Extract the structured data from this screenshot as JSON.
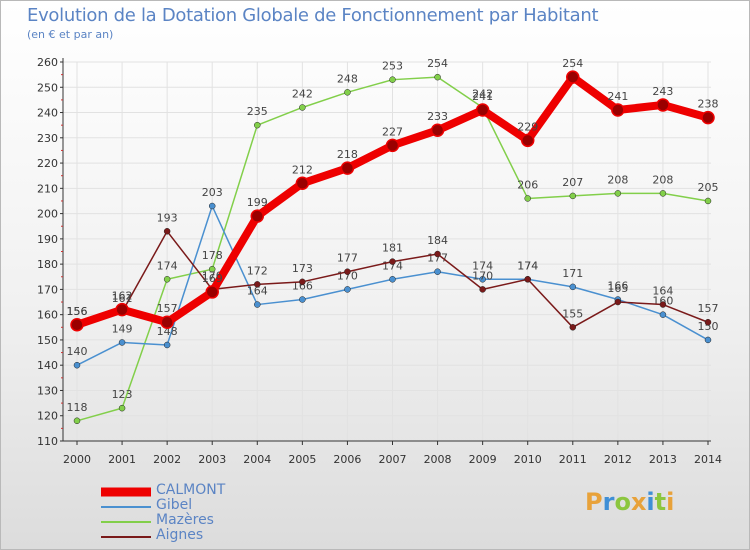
{
  "header": {
    "title": "Evolution de la Dotation Globale de Fonctionnement par Habitant",
    "subtitle": "(en € et par an)"
  },
  "logo": {
    "text": "Proxiti",
    "colors": [
      "#e8a23a",
      "#3f8fd6",
      "#8cc63f",
      "#e8a23a",
      "#3f8fd6",
      "#8cc63f",
      "#e8a23a"
    ]
  },
  "chart_data": {
    "type": "line",
    "title": "Evolution de la Dotation Globale de Fonctionnement par Habitant",
    "subtitle": "(en € et par an)",
    "xlabel": "",
    "ylabel": "",
    "x": [
      "2000",
      "2001",
      "2002",
      "2003",
      "2004",
      "2005",
      "2006",
      "2007",
      "2008",
      "2009",
      "2010",
      "2011",
      "2012",
      "2013",
      "2014"
    ],
    "ylim": [
      110,
      260
    ],
    "yticks": [
      110,
      120,
      130,
      140,
      150,
      160,
      170,
      180,
      190,
      200,
      210,
      220,
      230,
      240,
      250,
      260
    ],
    "grid": true,
    "legend_position": "bottom-left",
    "series": [
      {
        "name": "Mazères",
        "color": "#82cf4a",
        "values": [
          118,
          123,
          174,
          178,
          235,
          242,
          248,
          253,
          254,
          242,
          206,
          207,
          208,
          208,
          205
        ]
      },
      {
        "name": "Gibel",
        "color": "#4a90d0",
        "values": [
          140,
          149,
          148,
          203,
          164,
          166,
          170,
          174,
          177,
          174,
          174,
          171,
          166,
          160,
          150
        ]
      },
      {
        "name": "Aignes",
        "color": "#7a1a1a",
        "values": [
          156,
          161,
          193,
          170,
          172,
          173,
          177,
          181,
          184,
          170,
          174,
          155,
          165,
          164,
          157
        ]
      },
      {
        "name": "CALMONT",
        "color": "#ee0000",
        "values": [
          156,
          162,
          157,
          169,
          199,
          212,
          218,
          227,
          233,
          241,
          229,
          254,
          241,
          243,
          238
        ]
      }
    ],
    "legend": [
      "CALMONT",
      "Gibel",
      "Mazères",
      "Aignes"
    ]
  }
}
